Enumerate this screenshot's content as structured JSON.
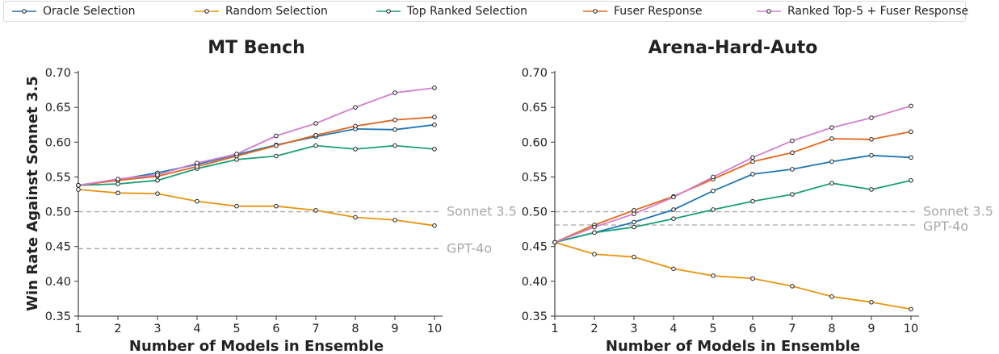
{
  "legend": {
    "items": [
      {
        "label": "Oracle Selection",
        "color": "#1f77b4"
      },
      {
        "label": "Random Selection",
        "color": "#e8940f"
      },
      {
        "label": "Top Ranked Selection",
        "color": "#1a9e77"
      },
      {
        "label": "Fuser Response",
        "color": "#e2661b"
      },
      {
        "label": "Ranked Top-5 + Fuser Response",
        "color": "#d17fcf"
      }
    ]
  },
  "ylabel": "Win Rate Against Sonnet 3.5",
  "chart_data": [
    {
      "type": "line",
      "title": "MT Bench",
      "xlabel": "Number of Models in Ensemble",
      "x": [
        1,
        2,
        3,
        4,
        5,
        6,
        7,
        8,
        9,
        10
      ],
      "xlim": [
        1,
        10
      ],
      "ylim": [
        0.35,
        0.7
      ],
      "yticks": [
        "0.35",
        "0.40",
        "0.45",
        "0.50",
        "0.55",
        "0.60",
        "0.65",
        "0.70"
      ],
      "xticks": [
        "1",
        "2",
        "3",
        "4",
        "5",
        "6",
        "7",
        "8",
        "9",
        "10"
      ],
      "reference_lines": [
        {
          "label": "Sonnet 3.5",
          "value": 0.5
        },
        {
          "label": "GPT-4o",
          "value": 0.447
        }
      ],
      "series": [
        {
          "name": "Oracle Selection",
          "values": [
            0.538,
            0.546,
            0.556,
            0.568,
            0.582,
            0.596,
            0.608,
            0.619,
            0.618,
            0.625
          ]
        },
        {
          "name": "Random Selection",
          "values": [
            0.532,
            0.527,
            0.526,
            0.515,
            0.508,
            0.508,
            0.502,
            0.492,
            0.488,
            0.48
          ]
        },
        {
          "name": "Top Ranked Selection",
          "values": [
            0.538,
            0.54,
            0.545,
            0.562,
            0.575,
            0.58,
            0.595,
            0.59,
            0.595,
            0.59
          ]
        },
        {
          "name": "Fuser Response",
          "values": [
            0.538,
            0.545,
            0.551,
            0.565,
            0.58,
            0.595,
            0.61,
            0.623,
            0.632,
            0.636
          ]
        },
        {
          "name": "Ranked Top-5 + Fuser Response",
          "values": [
            0.538,
            0.547,
            0.553,
            0.57,
            0.583,
            0.609,
            0.627,
            0.65,
            0.671,
            0.678
          ]
        }
      ]
    },
    {
      "type": "line",
      "title": "Arena-Hard-Auto",
      "xlabel": "Number of Models in Ensemble",
      "x": [
        1,
        2,
        3,
        4,
        5,
        6,
        7,
        8,
        9,
        10
      ],
      "xlim": [
        1,
        10
      ],
      "ylim": [
        0.35,
        0.7
      ],
      "yticks": [
        "0.35",
        "0.40",
        "0.45",
        "0.50",
        "0.55",
        "0.60",
        "0.65",
        "0.70"
      ],
      "xticks": [
        "1",
        "2",
        "3",
        "4",
        "5",
        "6",
        "7",
        "8",
        "9",
        "10"
      ],
      "reference_lines": [
        {
          "label": "Sonnet 3.5",
          "value": 0.5
        },
        {
          "label": "GPT-4o",
          "value": 0.481
        }
      ],
      "series": [
        {
          "name": "Oracle Selection",
          "values": [
            0.456,
            0.47,
            0.485,
            0.503,
            0.53,
            0.554,
            0.561,
            0.572,
            0.581,
            0.578
          ]
        },
        {
          "name": "Random Selection",
          "values": [
            0.456,
            0.439,
            0.435,
            0.418,
            0.408,
            0.404,
            0.393,
            0.378,
            0.37,
            0.36
          ]
        },
        {
          "name": "Top Ranked Selection",
          "values": [
            0.456,
            0.47,
            0.478,
            0.49,
            0.503,
            0.515,
            0.525,
            0.541,
            0.532,
            0.545
          ]
        },
        {
          "name": "Fuser Response",
          "values": [
            0.456,
            0.481,
            0.502,
            0.522,
            0.547,
            0.572,
            0.585,
            0.605,
            0.604,
            0.615
          ]
        },
        {
          "name": "Ranked Top-5 + Fuser Response",
          "values": [
            0.456,
            0.478,
            0.497,
            0.521,
            0.55,
            0.578,
            0.602,
            0.621,
            0.635,
            0.652
          ]
        }
      ]
    }
  ]
}
